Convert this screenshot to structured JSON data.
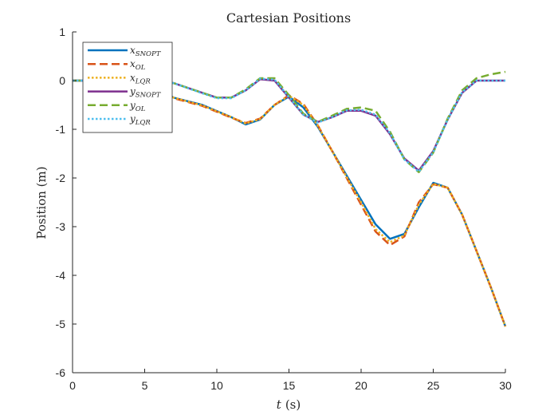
{
  "chart_data": {
    "type": "line",
    "title": "Cartesian Positions",
    "xlabel_var": "t",
    "xlabel_unit": "(s)",
    "ylabel": "Position (m)",
    "xlim": [
      0,
      30
    ],
    "ylim": [
      -6,
      1
    ],
    "xticks": [
      0,
      5,
      10,
      15,
      20,
      25,
      30
    ],
    "yticks": [
      1,
      0,
      -1,
      -2,
      -3,
      -4,
      -5,
      -6
    ],
    "grid": false,
    "legend_position": "top-left",
    "series": [
      {
        "name": "x_SNOPT",
        "legend_base": "x",
        "legend_sub": "SNOPT",
        "color": "#0072BD",
        "dash": "solid",
        "x": [
          0,
          3,
          5,
          7,
          9,
          11,
          12,
          13,
          14,
          15,
          16,
          17,
          18,
          19,
          20,
          21,
          22,
          23,
          24,
          25,
          26,
          27,
          28,
          29,
          30
        ],
        "y": [
          0,
          0,
          -0.05,
          -0.35,
          -0.5,
          -0.75,
          -0.9,
          -0.8,
          -0.5,
          -0.33,
          -0.55,
          -0.95,
          -1.45,
          -1.95,
          -2.45,
          -2.95,
          -3.25,
          -3.15,
          -2.6,
          -2.1,
          -2.2,
          -2.75,
          -3.5,
          -4.25,
          -5.05
        ]
      },
      {
        "name": "x_OL",
        "legend_base": "x",
        "legend_sub": "OL",
        "color": "#D95319",
        "dash": "dashed",
        "x": [
          0,
          3,
          5,
          7,
          9,
          11,
          12,
          13,
          14,
          15,
          16,
          17,
          18,
          19,
          20,
          21,
          22,
          23,
          24,
          25,
          26,
          27,
          28,
          29,
          30
        ],
        "y": [
          0,
          0,
          -0.05,
          -0.36,
          -0.52,
          -0.76,
          -0.87,
          -0.78,
          -0.5,
          -0.3,
          -0.48,
          -0.92,
          -1.45,
          -2.0,
          -2.55,
          -3.1,
          -3.38,
          -3.2,
          -2.5,
          -2.13,
          -2.2,
          -2.75,
          -3.5,
          -4.25,
          -5.05
        ]
      },
      {
        "name": "x_LQR",
        "legend_base": "x",
        "legend_sub": "LQR",
        "color": "#EDB120",
        "dash": "dotted",
        "x": [
          0,
          3,
          5,
          7,
          9,
          11,
          12,
          13,
          14,
          15,
          16,
          17,
          18,
          19,
          20,
          21,
          22,
          23,
          24,
          25,
          26,
          27,
          28,
          29,
          30
        ],
        "y": [
          0,
          0,
          -0.05,
          -0.35,
          -0.51,
          -0.75,
          -0.88,
          -0.79,
          -0.5,
          -0.31,
          -0.5,
          -0.93,
          -1.45,
          -1.98,
          -2.5,
          -3.05,
          -3.32,
          -3.18,
          -2.55,
          -2.12,
          -2.2,
          -2.75,
          -3.5,
          -4.25,
          -5.05
        ]
      },
      {
        "name": "y_SNOPT",
        "legend_base": "y",
        "legend_sub": "SNOPT",
        "color": "#7E2F8E",
        "dash": "solid",
        "x": [
          0,
          3,
          5,
          7,
          9,
          10,
          11,
          12,
          13,
          14,
          15,
          16,
          17,
          18,
          19,
          20,
          21,
          22,
          23,
          24,
          25,
          26,
          27,
          28,
          29,
          30
        ],
        "y": [
          0,
          0,
          0,
          -0.05,
          -0.25,
          -0.35,
          -0.35,
          -0.2,
          0.03,
          0.0,
          -0.35,
          -0.7,
          -0.85,
          -0.75,
          -0.62,
          -0.62,
          -0.72,
          -1.1,
          -1.6,
          -1.85,
          -1.45,
          -0.8,
          -0.25,
          0,
          0,
          0
        ]
      },
      {
        "name": "y_OL",
        "legend_base": "y",
        "legend_sub": "OL",
        "color": "#77AC30",
        "dash": "dashed",
        "x": [
          0,
          3,
          5,
          7,
          9,
          10,
          11,
          12,
          13,
          14,
          15,
          16,
          17,
          18,
          19,
          20,
          21,
          22,
          23,
          24,
          25,
          26,
          27,
          28,
          29,
          30
        ],
        "y": [
          0,
          0,
          0,
          -0.05,
          -0.25,
          -0.35,
          -0.35,
          -0.18,
          0.05,
          0.05,
          -0.3,
          -0.68,
          -0.85,
          -0.72,
          -0.58,
          -0.55,
          -0.62,
          -1.05,
          -1.62,
          -1.88,
          -1.48,
          -0.78,
          -0.2,
          0.05,
          0.13,
          0.18
        ]
      },
      {
        "name": "y_LQR",
        "legend_base": "y",
        "legend_sub": "LQR",
        "color": "#4DBEEE",
        "dash": "dotted",
        "x": [
          0,
          3,
          5,
          7,
          9,
          10,
          11,
          12,
          13,
          14,
          15,
          16,
          17,
          18,
          19,
          20,
          21,
          22,
          23,
          24,
          25,
          26,
          27,
          28,
          29,
          30
        ],
        "y": [
          0,
          0,
          0,
          -0.05,
          -0.26,
          -0.36,
          -0.36,
          -0.2,
          0.04,
          0.02,
          -0.34,
          -0.7,
          -0.86,
          -0.75,
          -0.61,
          -0.6,
          -0.7,
          -1.08,
          -1.62,
          -1.87,
          -1.47,
          -0.8,
          -0.24,
          0,
          0,
          0
        ]
      }
    ]
  }
}
